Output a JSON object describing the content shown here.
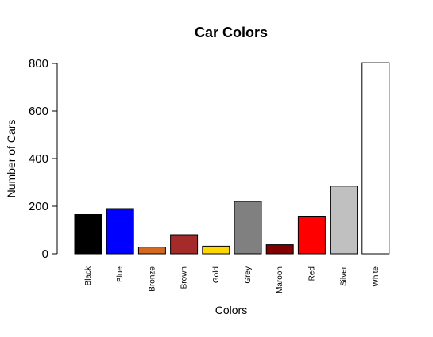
{
  "chart_data": {
    "type": "bar",
    "title": "Car Colors",
    "xlabel": "Colors",
    "ylabel": "Number of Cars",
    "ylim": [
      0,
      800
    ],
    "yticks": [
      "0",
      "200",
      "400",
      "600",
      "800"
    ],
    "categories": [
      "Black",
      "Blue",
      "Bronze",
      "Brown",
      "Gold",
      "Grey",
      "Maroon",
      "Red",
      "Silver",
      "White"
    ],
    "values": [
      165,
      190,
      28,
      80,
      32,
      220,
      38,
      155,
      284,
      803
    ],
    "colors": [
      "#000000",
      "#0000ff",
      "#d2691e",
      "#a52a2a",
      "#ffd700",
      "#808080",
      "#800000",
      "#ff0000",
      "#c0c0c0",
      "#ffffff"
    ],
    "legend": "none",
    "grid": false
  }
}
